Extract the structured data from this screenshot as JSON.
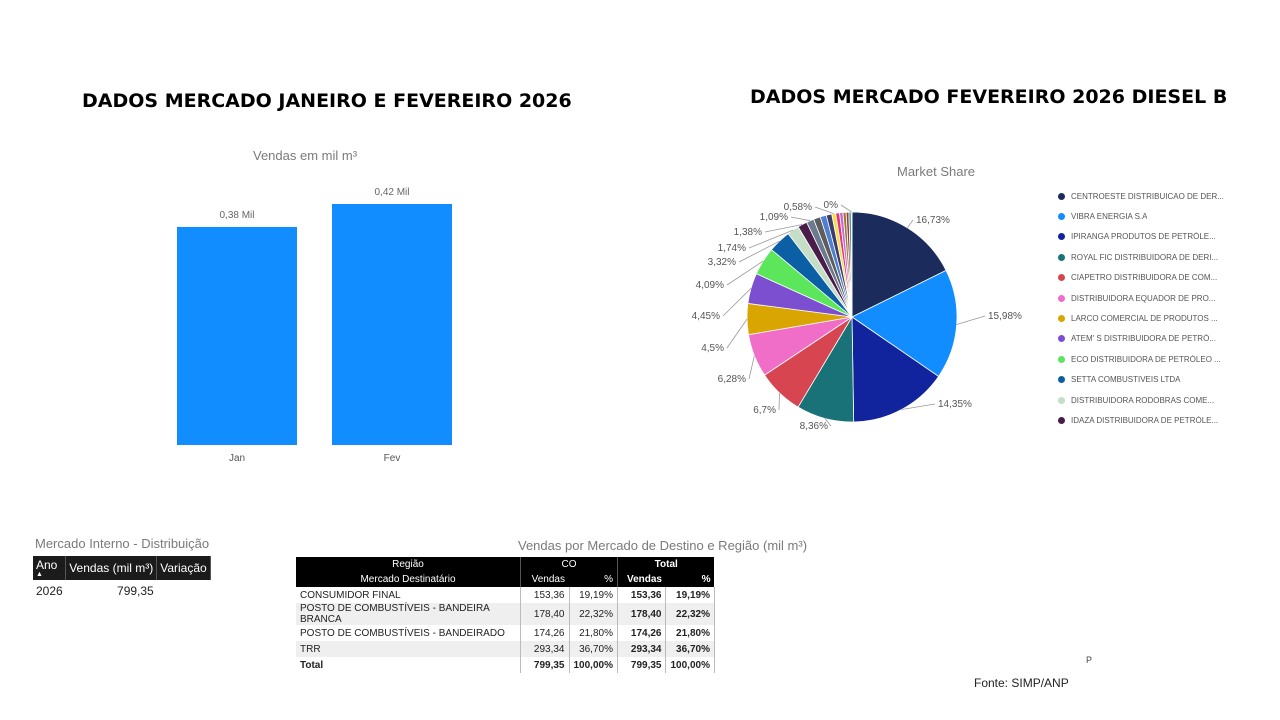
{
  "titles": {
    "left": "DADOS MERCADO JANEIRO E FEVEREIRO 2026",
    "right": "DADOS MERCADO FEVEREIRO 2026 DIESEL B"
  },
  "chart_data": [
    {
      "type": "bar",
      "title": "Vendas  em mil m³",
      "categories": [
        "Jan",
        "Fev"
      ],
      "values": [
        0.38,
        0.42
      ],
      "data_labels": [
        "0,38 Mil",
        "0,42 Mil"
      ],
      "color": "#118dff",
      "grid": false
    },
    {
      "type": "pie",
      "title": "Market Share",
      "legend_position": "right",
      "slices": [
        {
          "name": "CENTROESTE DISTRIBUICAO DE DER...",
          "value": 16.73,
          "label": "16,73%",
          "color": "#1a2b5c"
        },
        {
          "name": "VIBRA ENERGIA S.A",
          "value": 15.98,
          "label": "15,98%",
          "color": "#118dff"
        },
        {
          "name": "IPIRANGA PRODUTOS DE PETRÓLE...",
          "value": 14.35,
          "label": "14,35%",
          "color": "#12239e"
        },
        {
          "name": "ROYAL FIC DISTRIBUIDORA DE DERI...",
          "value": 8.36,
          "label": "8,36%",
          "color": "#197278"
        },
        {
          "name": "CIAPETRO DISTRIBUIDORA DE COM...",
          "value": 6.7,
          "label": "6,7%",
          "color": "#d64550"
        },
        {
          "name": "DISTRIBUIDORA EQUADOR DE PRO...",
          "value": 6.28,
          "label": "6,28%",
          "color": "#f06ec7"
        },
        {
          "name": "LARCO COMERCIAL DE PRODUTOS ...",
          "value": 4.5,
          "label": "4,5%",
          "color": "#d9a500"
        },
        {
          "name": "ATEM' S DISTRIBUIDORA DE PETRÓ...",
          "value": 4.45,
          "label": "4,45%",
          "color": "#7b4fcf"
        },
        {
          "name": "ECO DISTRIBUIDORA DE PETRÓLEO ...",
          "value": 4.09,
          "label": "4,09%",
          "color": "#5ce65c"
        },
        {
          "name": "SETTA COMBUSTIVEIS LTDA",
          "value": 3.32,
          "label": "3,32%",
          "color": "#0b5fa5"
        },
        {
          "name": "DISTRIBUIDORA RODOBRAS COME...",
          "value": 1.74,
          "label": "1,74%",
          "color": "#c5dec7"
        },
        {
          "name": "IDAZA DISTRIBUIDORA DE PETRÓLE...",
          "value": 1.38,
          "label": "1,38%",
          "color": "#4a1c4a"
        },
        {
          "name": "",
          "value": 1.09,
          "label": "1,09%",
          "color": "#6b7a8f"
        },
        {
          "name": "",
          "value": 1.0,
          "label": "",
          "color": "#5d5d5d"
        },
        {
          "name": "",
          "value": 0.9,
          "label": "",
          "color": "#4f7fd0"
        },
        {
          "name": "",
          "value": 0.8,
          "label": "",
          "color": "#3d3d6b"
        },
        {
          "name": "",
          "value": 0.58,
          "label": "0,58%",
          "color": "#f5e04a"
        },
        {
          "name": "",
          "value": 0.55,
          "label": "",
          "color": "#e8336f"
        },
        {
          "name": "",
          "value": 0.5,
          "label": "",
          "color": "#c06fd8"
        },
        {
          "name": "",
          "value": 0.45,
          "label": "",
          "color": "#9d7a3a"
        },
        {
          "name": "",
          "value": 0.4,
          "label": "",
          "color": "#a13a3a"
        },
        {
          "name": "",
          "value": 0.35,
          "label": "",
          "color": "#3aa0a0"
        },
        {
          "name": "",
          "value": 0.1,
          "label": "0%",
          "color": "#8a8a8a"
        }
      ]
    }
  ],
  "mercado_interno": {
    "title": "Mercado Interno - Distribuição",
    "headers": [
      "Ano",
      "Vendas (mil m³)",
      "Variação"
    ],
    "rows": [
      [
        "2026",
        "799,35",
        ""
      ]
    ]
  },
  "vendas_mercado": {
    "title": "Vendas por Mercado de Destino e Região (mil m³)",
    "header_regiao": "Região",
    "header_mercado": "Mercado Destinatário",
    "group_co": "CO",
    "group_total": "Total",
    "sub_vendas": "Vendas",
    "sub_pct": "%",
    "rows": [
      [
        "CONSUMIDOR FINAL",
        "153,36",
        "19,19%",
        "153,36",
        "19,19%"
      ],
      [
        "POSTO DE COMBUSTÍVEIS - BANDEIRA BRANCA",
        "178,40",
        "22,32%",
        "178,40",
        "22,32%"
      ],
      [
        "POSTO DE COMBUSTÍVEIS - BANDEIRADO",
        "174,26",
        "21,80%",
        "174,26",
        "21,80%"
      ],
      [
        "TRR",
        "293,34",
        "36,70%",
        "293,34",
        "36,70%"
      ],
      [
        "Total",
        "799,35",
        "100,00%",
        "799,35",
        "100,00%"
      ]
    ]
  },
  "fonte": "Fonte: SIMP/ANP",
  "marker": "P"
}
